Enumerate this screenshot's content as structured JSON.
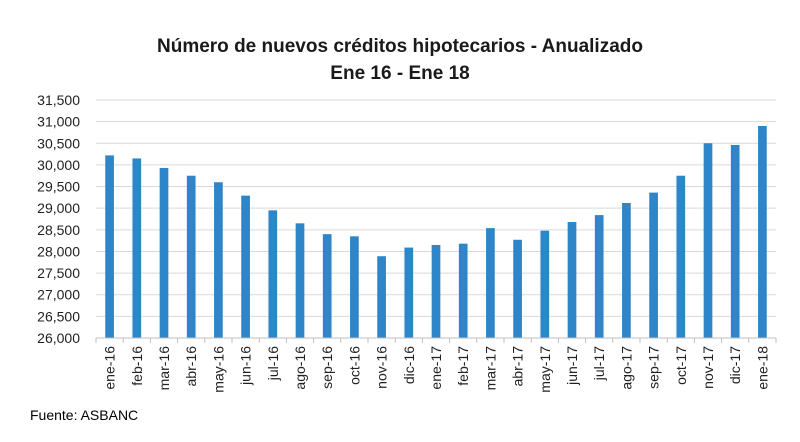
{
  "chart_data": {
    "type": "bar",
    "title": "Número de nuevos créditos hipotecarios - Anualizado",
    "subtitle": "Ene 16 - Ene 18",
    "categories": [
      "ene-16",
      "feb-16",
      "mar-16",
      "abr-16",
      "may-16",
      "jun-16",
      "jul-16",
      "ago-16",
      "sep-16",
      "oct-16",
      "nov-16",
      "dic-16",
      "ene-17",
      "feb-17",
      "mar-17",
      "abr-17",
      "may-17",
      "jun-17",
      "jul-17",
      "ago-17",
      "sep-17",
      "oct-17",
      "nov-17",
      "dic-17",
      "ene-18"
    ],
    "values": [
      30220,
      30150,
      29930,
      29750,
      29600,
      29290,
      28950,
      28650,
      28400,
      28350,
      27890,
      28090,
      28150,
      28180,
      28540,
      28270,
      28480,
      28680,
      28840,
      29120,
      29360,
      29750,
      30500,
      30460,
      30900
    ],
    "ylim": [
      26000,
      31500
    ],
    "yticks": [
      26000,
      26500,
      27000,
      27500,
      28000,
      28500,
      29000,
      29500,
      30000,
      30500,
      31000,
      31500
    ],
    "ytick_labels": [
      "26,000",
      "26,500",
      "27,000",
      "27,500",
      "28,000",
      "28,500",
      "29,000",
      "29,500",
      "30,000",
      "30,500",
      "31,000",
      "31,500"
    ],
    "grid": true,
    "bar_color": "#2e86c8",
    "grid_color": "#d9d9d9"
  },
  "footer": {
    "source": "Fuente: ASBANC"
  }
}
